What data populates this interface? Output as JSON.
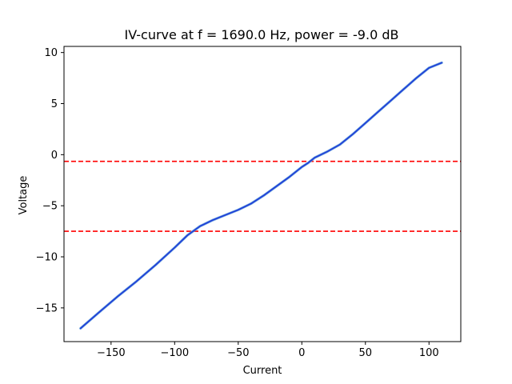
{
  "chart_data": {
    "type": "line",
    "title": "IV-curve at f = 1690.0 Hz, power = -9.0 dB",
    "xlabel": "Current",
    "ylabel": "Voltage",
    "xlim": [
      -187,
      125
    ],
    "ylim": [
      -18.3,
      10.6
    ],
    "x_ticks": [
      {
        "value": -150,
        "label": "−150"
      },
      {
        "value": -100,
        "label": "−100"
      },
      {
        "value": -50,
        "label": "−50"
      },
      {
        "value": 0,
        "label": "0"
      },
      {
        "value": 50,
        "label": "50"
      },
      {
        "value": 100,
        "label": "100"
      }
    ],
    "y_ticks": [
      {
        "value": -15,
        "label": "−15"
      },
      {
        "value": -10,
        "label": "−10"
      },
      {
        "value": -5,
        "label": "−5"
      },
      {
        "value": 0,
        "label": "0"
      },
      {
        "value": 5,
        "label": "5"
      },
      {
        "value": 10,
        "label": "10"
      }
    ],
    "grid": false,
    "series": [
      {
        "color": "#1f3fd8",
        "x": [
          -174,
          -160,
          -145,
          -130,
          -115,
          -100,
          -90,
          -80,
          -70,
          -60,
          -50,
          -40,
          -30,
          -20,
          -10,
          0,
          5,
          10,
          20,
          30,
          40,
          50,
          60,
          70,
          80,
          90,
          100,
          110
        ],
        "y": [
          -17.0,
          -15.5,
          -13.9,
          -12.4,
          -10.8,
          -9.1,
          -7.9,
          -7.0,
          -6.4,
          -5.9,
          -5.4,
          -4.8,
          -4.0,
          -3.1,
          -2.2,
          -1.2,
          -0.8,
          -0.3,
          0.3,
          1.0,
          2.0,
          3.1,
          4.2,
          5.3,
          6.4,
          7.5,
          8.5,
          9.0
        ]
      }
    ],
    "hlines": [
      {
        "y": -0.65,
        "color": "#ff0000",
        "style": "dashed"
      },
      {
        "y": -7.5,
        "color": "#ff0000",
        "style": "dashed"
      }
    ]
  }
}
